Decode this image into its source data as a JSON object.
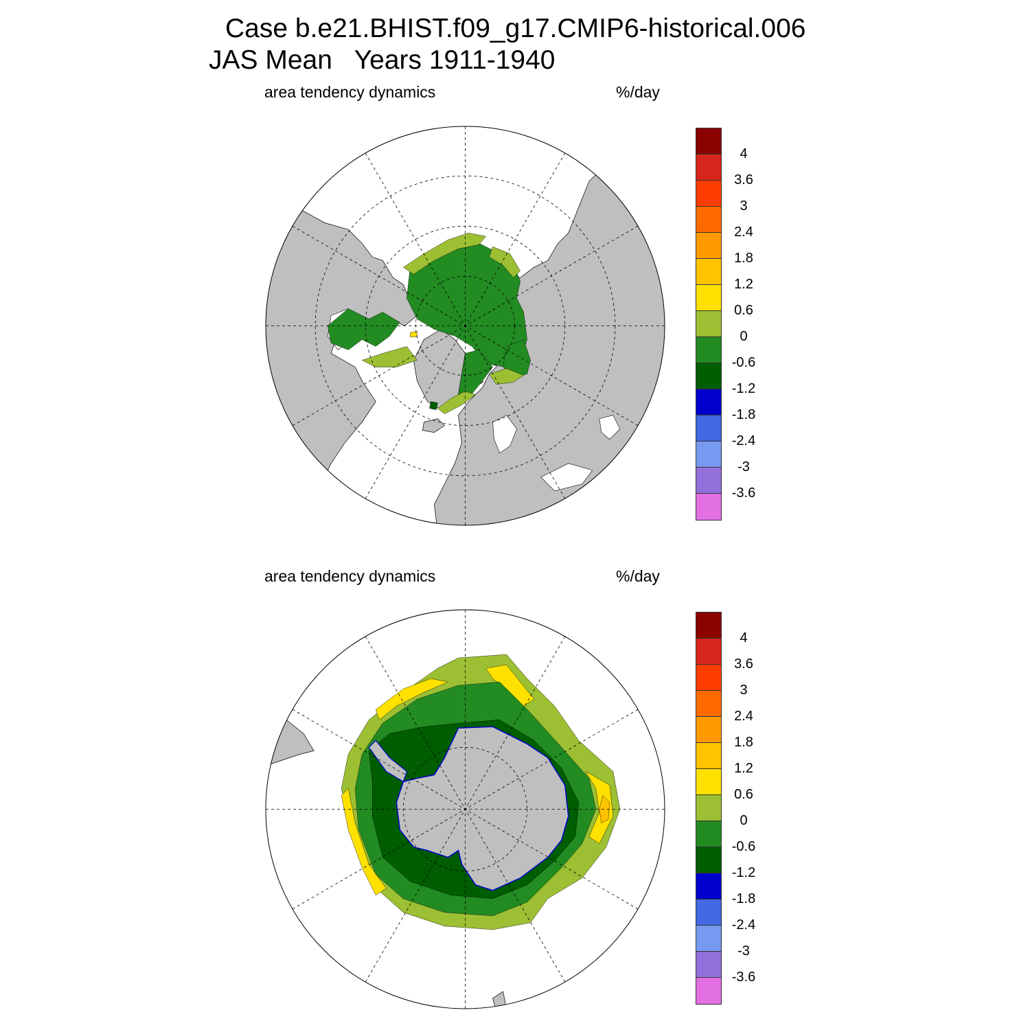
{
  "title_line1": "Case b.e21.BHIST.f09_g17.CMIP6-historical.006",
  "title_line2": "JAS Mean   Years 1911-1940",
  "panels": [
    {
      "id": "north",
      "variable": "area tendency dynamics",
      "units": "%/day"
    },
    {
      "id": "south",
      "variable": "area tendency dynamics",
      "units": "%/day"
    }
  ],
  "colorbar": {
    "labels": [
      "4",
      "3.6",
      "3",
      "2.4",
      "1.8",
      "1.2",
      "0.6",
      "0",
      "-0.6",
      "-1.2",
      "-1.8",
      "-2.4",
      "-3",
      "-3.6"
    ],
    "colors": [
      "#8b0000",
      "#d7261b",
      "#ff3d00",
      "#ff6a00",
      "#ff9a00",
      "#ffc300",
      "#ffe100",
      "#9cbf33",
      "#228b22",
      "#005d00",
      "#0000cd",
      "#4169e1",
      "#7799f0",
      "#9370db",
      "#e370e3"
    ]
  },
  "map_colors": {
    "land": "#bfbfbf",
    "ocean": "#ffffff",
    "ice_decrease_weak": "#228b22",
    "ice_decrease_moderate": "#005d00",
    "ice_increase_weak": "#9cbf33",
    "ice_increase_moderate": "#ffe100",
    "ice_increase_strong": "#ffc300",
    "ice_edge_strong_decrease": "#0000cd"
  }
}
